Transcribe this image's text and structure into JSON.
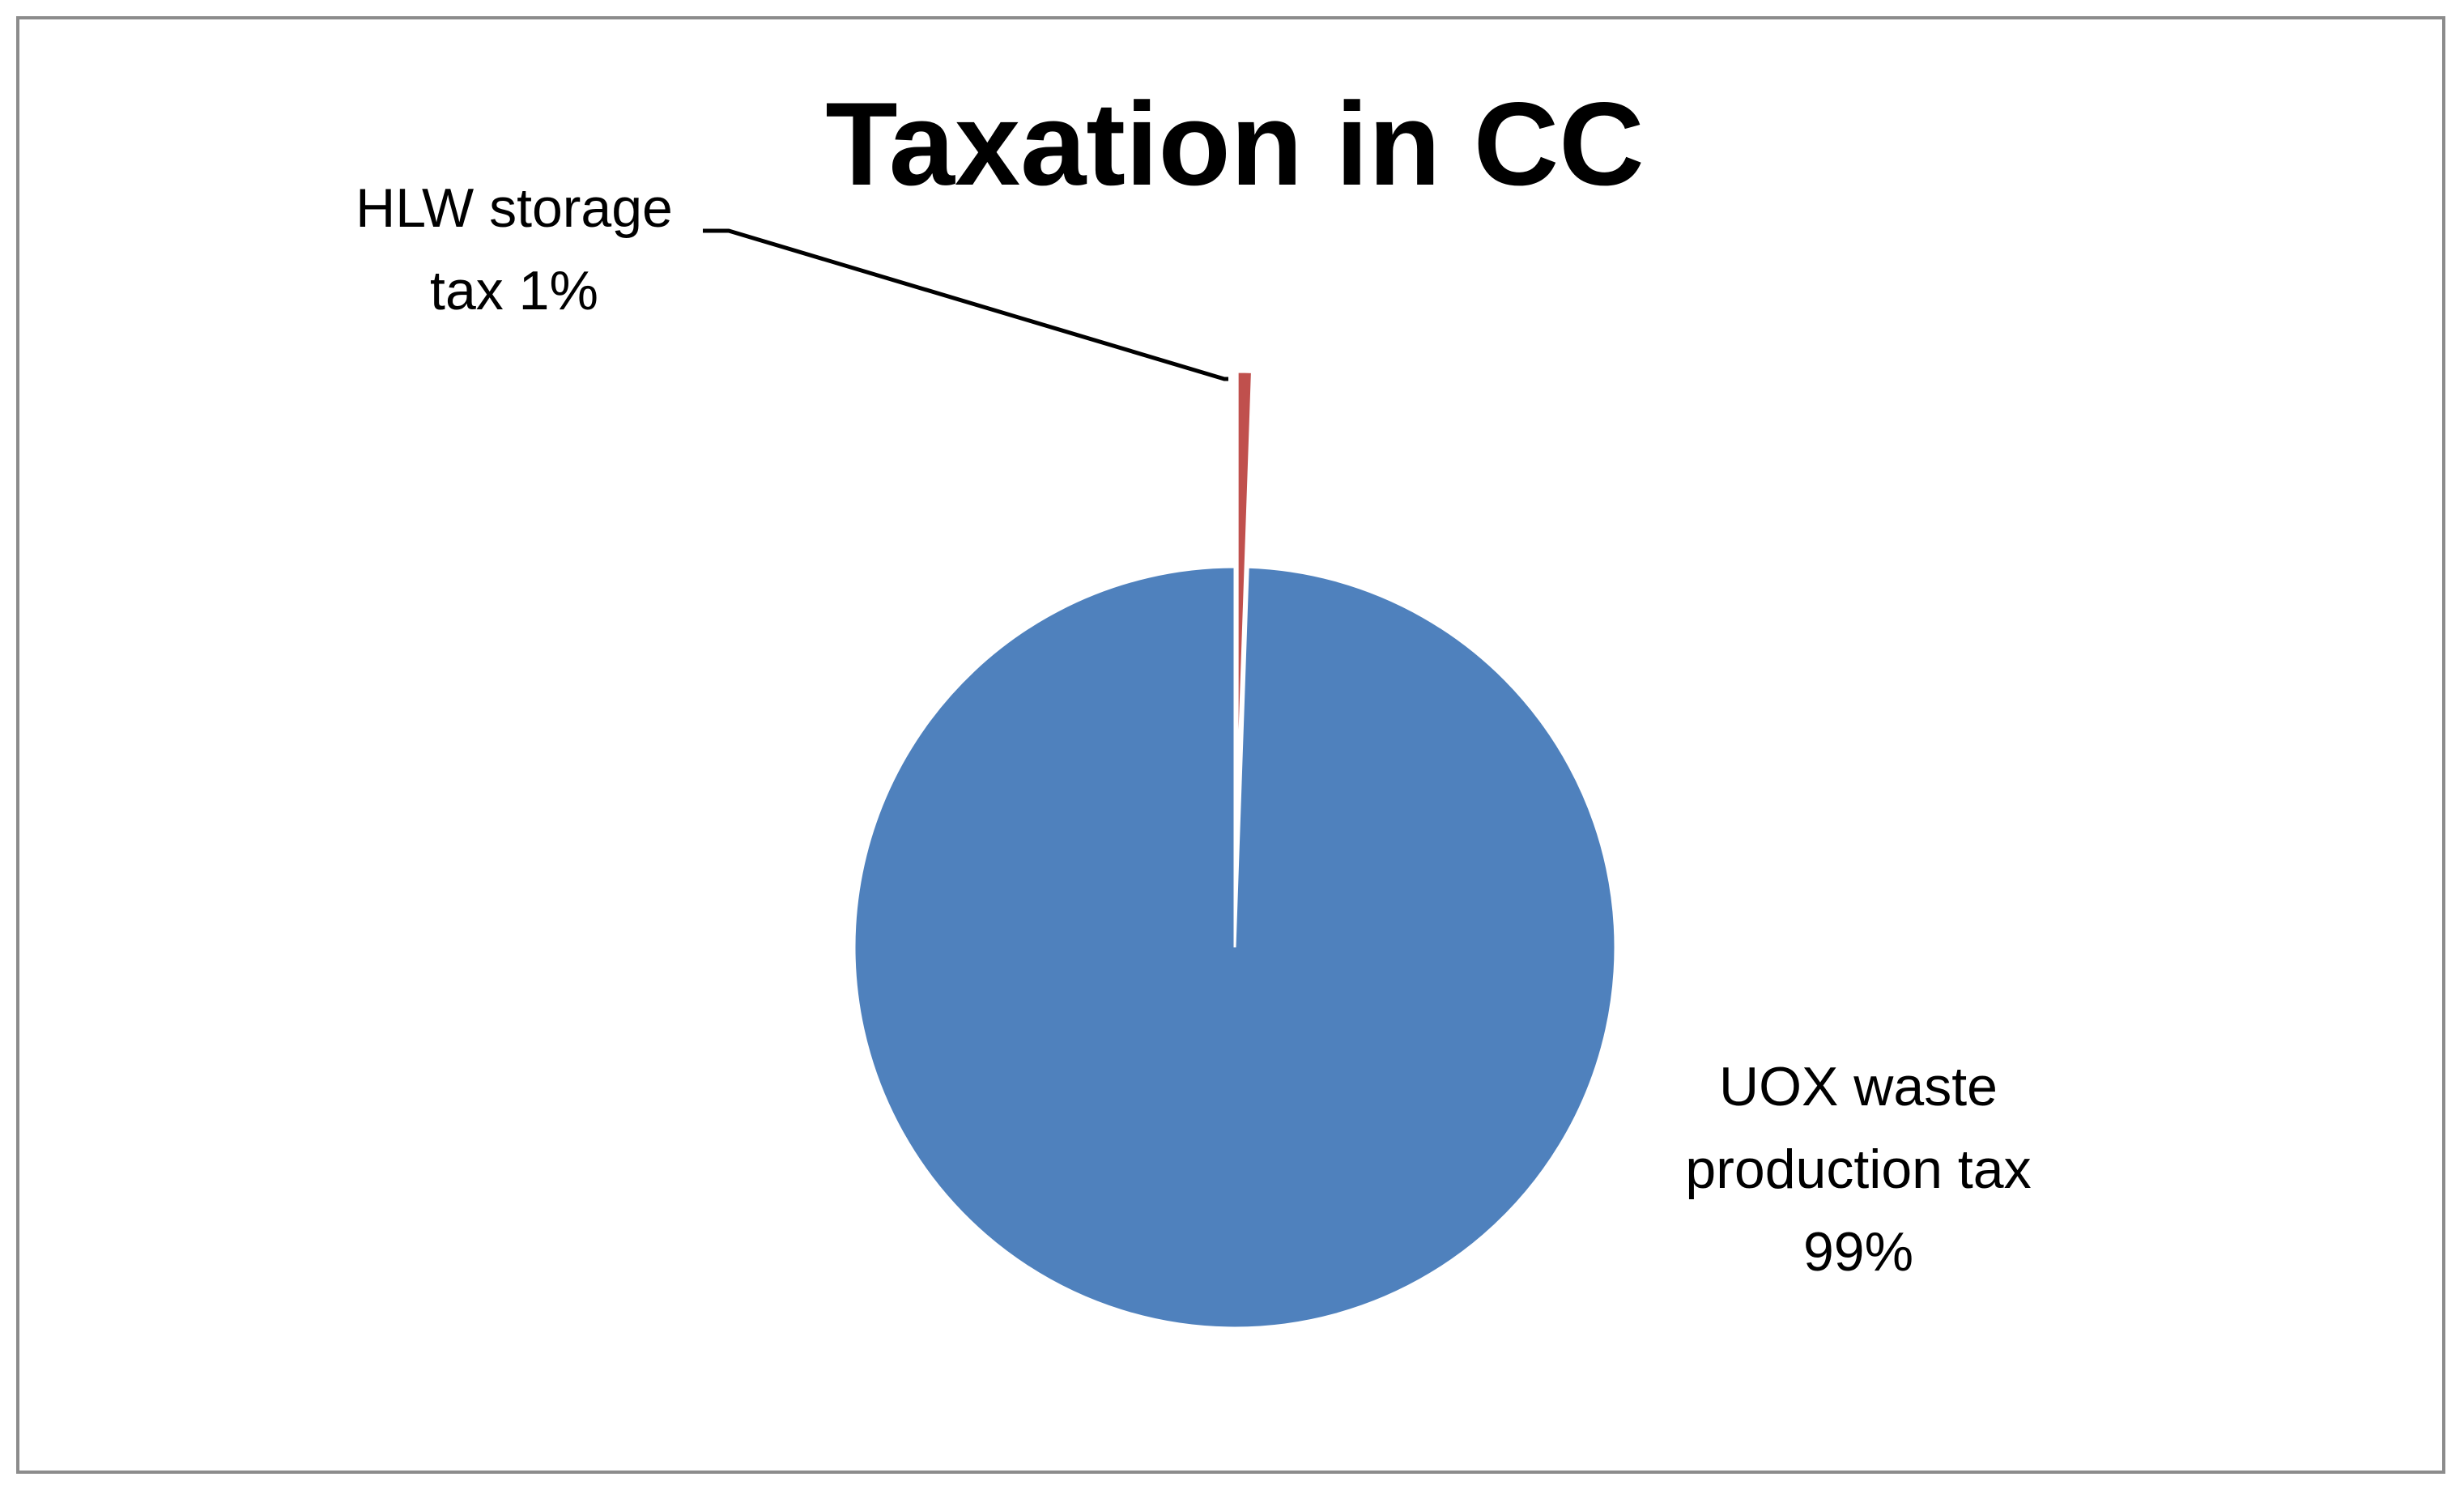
{
  "chart_data": {
    "type": "pie",
    "title": "Taxation in CC",
    "slices": [
      {
        "name": "UOX waste production tax",
        "value": 99,
        "label_lines": [
          "UOX waste",
          "production tax",
          "99%"
        ],
        "color": "#4f81bd"
      },
      {
        "name": "HLW storage tax",
        "value": 1,
        "label_lines": [
          "HLW storage",
          "tax 1%"
        ],
        "color": "#c0504d"
      }
    ],
    "legend": "none",
    "leader_lines": true
  }
}
